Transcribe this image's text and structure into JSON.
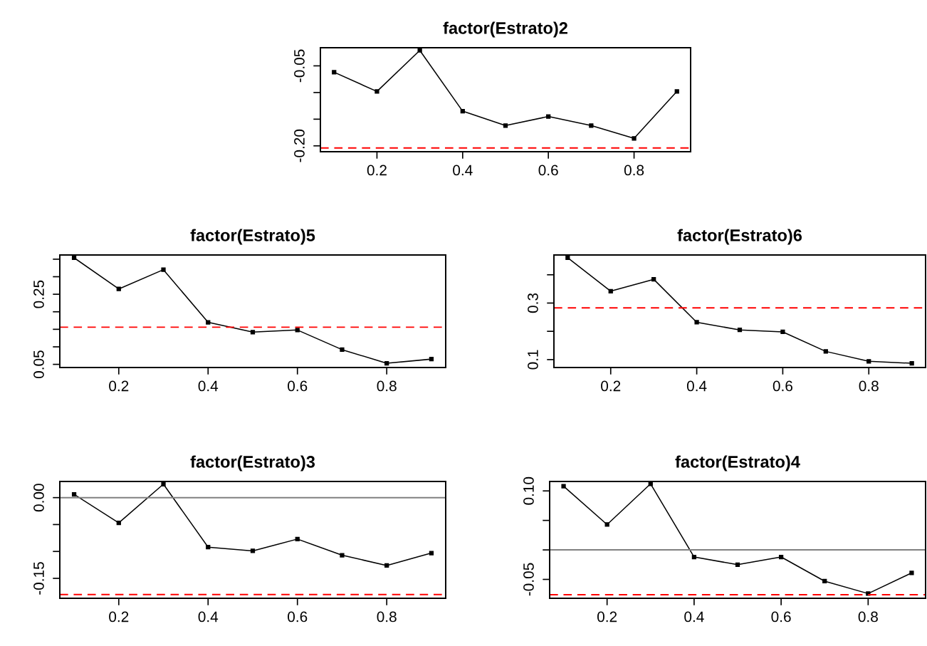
{
  "chart_data": [
    {
      "type": "line",
      "title": "factor(Estrato)2",
      "x": [
        0.1,
        0.2,
        0.3,
        0.4,
        0.5,
        0.6,
        0.7,
        0.8,
        0.9
      ],
      "marker": "square",
      "line_style": "solid",
      "series": [
        {
          "color": "#000000",
          "values": [
            -0.062,
            -0.098,
            -0.021,
            -0.135,
            -0.162,
            -0.145,
            -0.162,
            -0.186,
            -0.098
          ]
        }
      ],
      "xlim": [
        0.068,
        0.932
      ],
      "xticks": [
        0.2,
        0.4,
        0.6,
        0.8
      ],
      "ylim": [
        -0.211,
        -0.016
      ],
      "yticks": [
        {
          "value": -0.2,
          "label": "-0.20"
        },
        {
          "value": -0.15,
          "label": null
        },
        {
          "value": -0.1,
          "label": null
        },
        {
          "value": -0.05,
          "label": "-0.05"
        }
      ],
      "ref_lines": [
        {
          "axis": "y",
          "value": -0.204,
          "color": "#ff0000",
          "line_style": "dashed"
        }
      ],
      "grid": false,
      "legend": false
    },
    {
      "type": "line",
      "title": "factor(Estrato)5",
      "x": [
        0.1,
        0.2,
        0.3,
        0.4,
        0.5,
        0.6,
        0.7,
        0.8,
        0.9
      ],
      "marker": "square",
      "line_style": "solid",
      "series": [
        {
          "color": "#000000",
          "values": [
            0.354,
            0.265,
            0.32,
            0.17,
            0.142,
            0.148,
            0.092,
            0.053,
            0.065
          ]
        }
      ],
      "xlim": [
        0.068,
        0.932
      ],
      "xticks": [
        0.2,
        0.4,
        0.6,
        0.8
      ],
      "ylim": [
        0.041,
        0.362
      ],
      "yticks": [
        {
          "value": 0.05,
          "label": "0.05"
        },
        {
          "value": 0.1,
          "label": null
        },
        {
          "value": 0.15,
          "label": null
        },
        {
          "value": 0.2,
          "label": null
        },
        {
          "value": 0.25,
          "label": "0.25"
        },
        {
          "value": 0.3,
          "label": null
        },
        {
          "value": 0.35,
          "label": null
        }
      ],
      "ref_lines": [
        {
          "axis": "y",
          "value": 0.156,
          "color": "#ff0000",
          "line_style": "dashed"
        }
      ],
      "grid": false,
      "legend": false
    },
    {
      "type": "line",
      "title": "factor(Estrato)6",
      "x": [
        0.1,
        0.2,
        0.3,
        0.4,
        0.5,
        0.6,
        0.7,
        0.8,
        0.9
      ],
      "marker": "square",
      "line_style": "solid",
      "series": [
        {
          "color": "#000000",
          "values": [
            0.46,
            0.342,
            0.384,
            0.232,
            0.205,
            0.198,
            0.129,
            0.094,
            0.087
          ]
        }
      ],
      "xlim": [
        0.068,
        0.932
      ],
      "xticks": [
        0.2,
        0.4,
        0.6,
        0.8
      ],
      "ylim": [
        0.072,
        0.47
      ],
      "yticks": [
        {
          "value": 0.1,
          "label": "0.1"
        },
        {
          "value": 0.2,
          "label": null
        },
        {
          "value": 0.3,
          "label": "0.3"
        },
        {
          "value": 0.4,
          "label": null
        }
      ],
      "ref_lines": [
        {
          "axis": "y",
          "value": 0.283,
          "color": "#ff0000",
          "line_style": "dashed"
        }
      ],
      "grid": false,
      "legend": false
    },
    {
      "type": "line",
      "title": "factor(Estrato)3",
      "x": [
        0.1,
        0.2,
        0.3,
        0.4,
        0.5,
        0.6,
        0.7,
        0.8,
        0.9
      ],
      "marker": "square",
      "line_style": "solid",
      "series": [
        {
          "color": "#000000",
          "values": [
            0.006,
            -0.047,
            0.025,
            -0.092,
            -0.099,
            -0.077,
            -0.107,
            -0.126,
            -0.103
          ]
        }
      ],
      "xlim": [
        0.068,
        0.932
      ],
      "xticks": [
        0.2,
        0.4,
        0.6,
        0.8
      ],
      "ylim": [
        -0.187,
        0.03
      ],
      "yticks": [
        {
          "value": -0.15,
          "label": "-0.15"
        },
        {
          "value": -0.1,
          "label": null
        },
        {
          "value": -0.05,
          "label": null
        },
        {
          "value": 0.0,
          "label": "0.00"
        }
      ],
      "ref_lines": [
        {
          "axis": "y",
          "value": 0,
          "color": "#808080",
          "line_style": "solid"
        },
        {
          "axis": "y",
          "value": -0.18,
          "color": "#ff0000",
          "line_style": "dashed"
        }
      ],
      "grid": false,
      "legend": false
    },
    {
      "type": "line",
      "title": "factor(Estrato)4",
      "x": [
        0.1,
        0.2,
        0.3,
        0.4,
        0.5,
        0.6,
        0.7,
        0.8,
        0.9
      ],
      "marker": "square",
      "line_style": "solid",
      "series": [
        {
          "color": "#000000",
          "values": [
            0.108,
            0.043,
            0.112,
            -0.012,
            -0.025,
            -0.012,
            -0.053,
            -0.074,
            -0.039
          ]
        }
      ],
      "xlim": [
        0.068,
        0.932
      ],
      "xticks": [
        0.2,
        0.4,
        0.6,
        0.8
      ],
      "ylim": [
        -0.082,
        0.116
      ],
      "yticks": [
        {
          "value": -0.05,
          "label": "-0.05"
        },
        {
          "value": 0.0,
          "label": null
        },
        {
          "value": 0.05,
          "label": null
        },
        {
          "value": 0.1,
          "label": "0.10"
        }
      ],
      "ref_lines": [
        {
          "axis": "y",
          "value": 0,
          "color": "#808080",
          "line_style": "solid"
        },
        {
          "axis": "y",
          "value": -0.076,
          "color": "#ff0000",
          "line_style": "dashed"
        }
      ],
      "grid": false,
      "legend": false
    }
  ]
}
